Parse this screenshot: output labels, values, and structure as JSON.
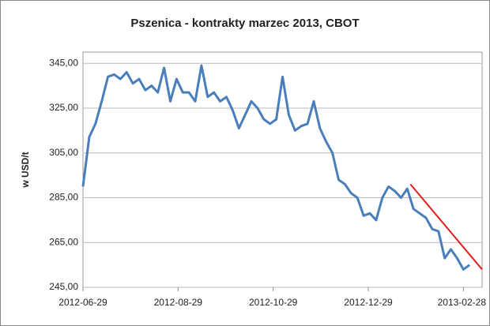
{
  "chart_data": {
    "type": "line",
    "title": "Pszenica - kontrakty marzec 2013, CBOT",
    "y_label": "w USD/t",
    "x": [
      "2012-06-29",
      "2012-07-03",
      "2012-07-07",
      "2012-07-11",
      "2012-07-15",
      "2012-07-19",
      "2012-07-23",
      "2012-07-27",
      "2012-07-31",
      "2012-08-04",
      "2012-08-08",
      "2012-08-12",
      "2012-08-16",
      "2012-08-20",
      "2012-08-24",
      "2012-08-28",
      "2012-09-01",
      "2012-09-05",
      "2012-09-09",
      "2012-09-13",
      "2012-09-17",
      "2012-09-21",
      "2012-09-25",
      "2012-09-29",
      "2012-10-03",
      "2012-10-07",
      "2012-10-11",
      "2012-10-15",
      "2012-10-19",
      "2012-10-23",
      "2012-10-27",
      "2012-10-31",
      "2012-11-04",
      "2012-11-08",
      "2012-11-12",
      "2012-11-16",
      "2012-11-20",
      "2012-11-24",
      "2012-11-28",
      "2012-12-02",
      "2012-12-06",
      "2012-12-10",
      "2012-12-14",
      "2012-12-18",
      "2012-12-22",
      "2012-12-26",
      "2012-12-30",
      "2013-01-03",
      "2013-01-07",
      "2013-01-11",
      "2013-01-15",
      "2013-01-19",
      "2013-01-23",
      "2013-01-27",
      "2013-01-31",
      "2013-02-04",
      "2013-02-08",
      "2013-02-12",
      "2013-02-16",
      "2013-02-20",
      "2013-02-24",
      "2013-02-28",
      "2013-03-04"
    ],
    "values": [
      290,
      312,
      318,
      328,
      339,
      340,
      338,
      341,
      336,
      338,
      333,
      335,
      332,
      343,
      328,
      338,
      332,
      332,
      328,
      344,
      330,
      332,
      328,
      330,
      324,
      316,
      322,
      328,
      325,
      320,
      318,
      320,
      339,
      322,
      315,
      317,
      318,
      328,
      316,
      310,
      305,
      293,
      291,
      287,
      285,
      277,
      278,
      275,
      285,
      290,
      288,
      285,
      289,
      280,
      278,
      276,
      271,
      270,
      258,
      262,
      258,
      253,
      255
    ],
    "color": "#4a7ebb",
    "trend_line": {
      "x": [
        "2013-01-25",
        "2013-03-12"
      ],
      "values": [
        291,
        253
      ],
      "color": "#e0201b"
    },
    "xlim": [
      "2012-06-29",
      "2013-03-12"
    ],
    "xticks": [
      "2012-06-29",
      "2012-08-29",
      "2012-10-29",
      "2012-12-29",
      "2013-02-28"
    ],
    "ylim": [
      245,
      350
    ],
    "yticks": [
      {
        "value": 245,
        "label": "245,00"
      },
      {
        "value": 265,
        "label": "265,00"
      },
      {
        "value": 285,
        "label": "285,00"
      },
      {
        "value": 305,
        "label": "305,00"
      },
      {
        "value": 325,
        "label": "325,00"
      },
      {
        "value": 345,
        "label": "345,00"
      }
    ],
    "grid": true
  }
}
